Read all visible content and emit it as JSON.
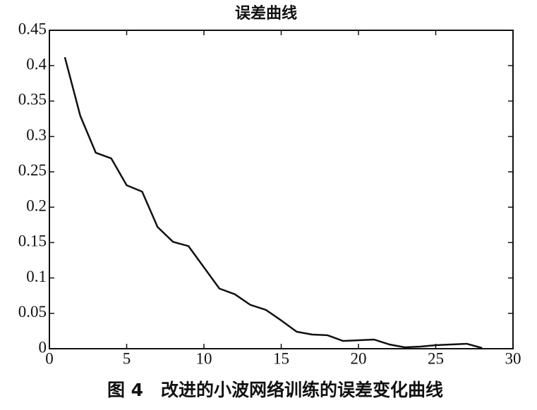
{
  "chart_data": {
    "type": "line",
    "title": "误差曲线",
    "caption": "图 4　改进的小波网络训练的误差变化曲线",
    "x": [
      1,
      2,
      3,
      4,
      5,
      6,
      7,
      8,
      9,
      10,
      11,
      12,
      13,
      14,
      15,
      16,
      17,
      18,
      19,
      20,
      21,
      22,
      23,
      24,
      25,
      26,
      27,
      28
    ],
    "series": [
      {
        "color": "#111111",
        "values": [
          0.412,
          0.329,
          0.277,
          0.269,
          0.231,
          0.222,
          0.172,
          0.151,
          0.145,
          0.115,
          0.085,
          0.077,
          0.062,
          0.055,
          0.04,
          0.024,
          0.02,
          0.019,
          0.011,
          0.012,
          0.013,
          0.006,
          0.002,
          0.003,
          0.005,
          0.006,
          0.007,
          0.001
        ]
      }
    ],
    "xlim": [
      0,
      30
    ],
    "xticks": [
      0,
      5,
      10,
      15,
      20,
      25,
      30
    ],
    "ylim": [
      0,
      0.45
    ],
    "yticks": [
      0,
      0.05,
      0.1,
      0.15,
      0.2,
      0.25,
      0.3,
      0.35,
      0.4,
      0.45
    ],
    "grid": false
  }
}
